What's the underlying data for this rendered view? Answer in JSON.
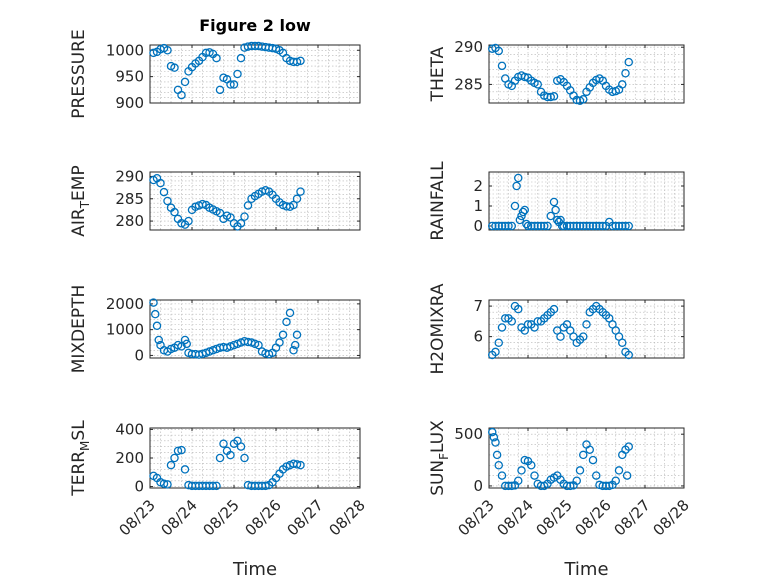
{
  "title": "Figure 2 low",
  "xlabel": "Time",
  "colors": {
    "marker": "#0072BD",
    "axes": "#262626",
    "grid": "#b5b5b5"
  },
  "chart_data": [
    {
      "type": "scatter",
      "title": "Figure 2 low",
      "ylabel": "PRESSURE",
      "ylim": [
        900,
        1010
      ],
      "yticks": [
        "900",
        "950",
        "1000"
      ],
      "xlim": [
        0,
        6
      ],
      "xticks": [
        "08/23",
        "08/24",
        "08/25",
        "08/26",
        "08/27",
        "08/28"
      ],
      "grid": true,
      "x": [
        0.1,
        0.2,
        0.3,
        0.4,
        0.5,
        0.6,
        0.7,
        0.8,
        0.9,
        1.0,
        1.1,
        1.2,
        1.3,
        1.4,
        1.5,
        1.6,
        1.7,
        1.8,
        1.9,
        2.0,
        2.1,
        2.2,
        2.3,
        2.4,
        2.5,
        2.6,
        2.7,
        2.8,
        2.9,
        3.0,
        3.1,
        3.2,
        3.3,
        3.4,
        3.5,
        3.6,
        3.7,
        3.8,
        3.9,
        4.0,
        4.1,
        4.2,
        4.3
      ],
      "y": [
        995,
        997,
        1002,
        1004,
        1000,
        970,
        967,
        925,
        915,
        940,
        960,
        968,
        975,
        980,
        987,
        995,
        996,
        993,
        985,
        925,
        948,
        945,
        935,
        935,
        955,
        985,
        1005,
        1007,
        1008,
        1008,
        1008,
        1007,
        1006,
        1005,
        1004,
        1003,
        1000,
        995,
        985,
        980,
        978,
        978,
        980
      ]
    },
    {
      "type": "scatter",
      "ylabel": "THETA",
      "ylim": [
        282.5,
        290.3
      ],
      "yticks": [
        "285",
        "290"
      ],
      "xlim": [
        0,
        6
      ],
      "xticks": [
        "08/23",
        "08/24",
        "08/25",
        "08/26",
        "08/27",
        "08/28"
      ],
      "grid": true,
      "x": [
        0.1,
        0.2,
        0.3,
        0.4,
        0.5,
        0.6,
        0.7,
        0.8,
        0.9,
        1.0,
        1.1,
        1.2,
        1.3,
        1.4,
        1.5,
        1.6,
        1.7,
        1.8,
        1.9,
        2.0,
        2.1,
        2.2,
        2.3,
        2.4,
        2.5,
        2.6,
        2.7,
        2.8,
        2.9,
        3.0,
        3.1,
        3.2,
        3.3,
        3.4,
        3.5,
        3.6,
        3.7,
        3.8,
        3.9,
        4.0,
        4.1,
        4.2,
        4.3
      ],
      "y": [
        289.8,
        289.9,
        289.5,
        287.5,
        285.8,
        285.0,
        284.8,
        285.5,
        286.0,
        286.2,
        286.0,
        285.9,
        285.5,
        285.2,
        285.0,
        284.0,
        283.5,
        283.3,
        283.3,
        283.4,
        285.5,
        285.7,
        285.3,
        284.8,
        284.2,
        283.5,
        282.9,
        282.8,
        283.0,
        284.0,
        284.6,
        285.2,
        285.6,
        285.8,
        285.5,
        284.8,
        284.3,
        284.0,
        284.1,
        284.3,
        285.0,
        286.5,
        288.0
      ]
    },
    {
      "type": "scatter",
      "ylabel": "AIR_TEMP",
      "ylabel_main": "AIR",
      "ylabel_sub": "T",
      "ylabel_rest": "EMP",
      "ylim": [
        278,
        291
      ],
      "yticks": [
        "280",
        "285",
        "290"
      ],
      "xlim": [
        0,
        6
      ],
      "xticks": [
        "08/23",
        "08/24",
        "08/25",
        "08/26",
        "08/27",
        "08/28"
      ],
      "grid": true,
      "x": [
        0.1,
        0.2,
        0.3,
        0.4,
        0.5,
        0.6,
        0.7,
        0.8,
        0.9,
        1.0,
        1.1,
        1.2,
        1.3,
        1.4,
        1.5,
        1.6,
        1.7,
        1.8,
        1.9,
        2.0,
        2.1,
        2.2,
        2.3,
        2.4,
        2.5,
        2.6,
        2.7,
        2.8,
        2.9,
        3.0,
        3.1,
        3.2,
        3.3,
        3.4,
        3.5,
        3.6,
        3.7,
        3.8,
        3.9,
        4.0,
        4.1,
        4.2,
        4.3
      ],
      "y": [
        289.2,
        289.6,
        288.5,
        286.5,
        284.5,
        283.0,
        282.0,
        280.5,
        279.5,
        279.2,
        280.0,
        282.5,
        283.2,
        283.5,
        283.8,
        283.6,
        283.0,
        282.6,
        282.2,
        281.8,
        280.5,
        281.2,
        280.8,
        279.5,
        278.8,
        279.5,
        281.0,
        283.5,
        285.0,
        285.6,
        286.1,
        286.6,
        286.9,
        286.6,
        285.9,
        285.0,
        284.2,
        283.6,
        283.3,
        283.2,
        283.6,
        285.0,
        286.6
      ]
    },
    {
      "type": "scatter",
      "ylabel": "RAINFALL",
      "ylim": [
        -0.2,
        2.7
      ],
      "yticks": [
        "0",
        "1",
        "2"
      ],
      "xlim": [
        0,
        6
      ],
      "xticks": [
        "08/23",
        "08/24",
        "08/25",
        "08/26",
        "08/27",
        "08/28"
      ],
      "grid": true,
      "x": [
        0.1,
        0.2,
        0.3,
        0.4,
        0.5,
        0.6,
        0.7,
        0.8,
        0.85,
        0.9,
        0.95,
        1.0,
        1.05,
        1.1,
        1.15,
        1.2,
        1.3,
        1.4,
        1.5,
        1.6,
        1.7,
        1.8,
        1.9,
        2.0,
        2.05,
        2.1,
        2.15,
        2.2,
        2.25,
        2.3,
        2.4,
        2.5,
        2.6,
        2.7,
        2.8,
        2.9,
        3.0,
        3.1,
        3.2,
        3.3,
        3.4,
        3.5,
        3.6,
        3.7,
        3.8,
        3.9,
        4.0,
        4.1,
        4.2,
        4.3
      ],
      "y": [
        0,
        0,
        0,
        0,
        0,
        0,
        0,
        1.0,
        2.0,
        2.4,
        0.3,
        0.5,
        0.7,
        0.8,
        0.1,
        0,
        0,
        0,
        0,
        0,
        0,
        0,
        0.5,
        1.2,
        0.8,
        0.3,
        0.2,
        0.3,
        0,
        0,
        0,
        0,
        0,
        0,
        0,
        0,
        0,
        0,
        0,
        0,
        0,
        0,
        0,
        0.2,
        0,
        0,
        0,
        0,
        0,
        0
      ]
    },
    {
      "type": "scatter",
      "ylabel": "MIXDEPTH",
      "ylim": [
        -100,
        2150
      ],
      "yticks": [
        "0",
        "1000",
        "2000"
      ],
      "xlim": [
        0,
        6
      ],
      "xticks": [
        "08/23",
        "08/24",
        "08/25",
        "08/26",
        "08/27",
        "08/28"
      ],
      "grid": true,
      "x": [
        0.1,
        0.15,
        0.2,
        0.25,
        0.3,
        0.4,
        0.5,
        0.6,
        0.7,
        0.8,
        0.9,
        1.0,
        1.05,
        1.1,
        1.2,
        1.3,
        1.4,
        1.5,
        1.6,
        1.7,
        1.8,
        1.9,
        2.0,
        2.1,
        2.2,
        2.3,
        2.4,
        2.5,
        2.6,
        2.7,
        2.8,
        2.9,
        3.0,
        3.1,
        3.2,
        3.3,
        3.4,
        3.5,
        3.6,
        3.7,
        3.8,
        3.9,
        4.0,
        4.1,
        4.15,
        4.2
      ],
      "y": [
        2050,
        1600,
        1150,
        600,
        400,
        200,
        150,
        250,
        300,
        400,
        350,
        600,
        450,
        100,
        50,
        50,
        30,
        60,
        100,
        150,
        200,
        250,
        300,
        320,
        300,
        350,
        400,
        450,
        500,
        550,
        520,
        500,
        450,
        400,
        150,
        80,
        50,
        100,
        300,
        500,
        800,
        1300,
        1650,
        200,
        400,
        800
      ]
    },
    {
      "type": "scatter",
      "ylabel": "H2OMIXRA",
      "ylim": [
        5.3,
        7.2
      ],
      "yticks": [
        "6",
        "7"
      ],
      "xlim": [
        0,
        6
      ],
      "xticks": [
        "08/23",
        "08/24",
        "08/25",
        "08/26",
        "08/27",
        "08/28"
      ],
      "grid": true,
      "x": [
        0.1,
        0.2,
        0.3,
        0.4,
        0.5,
        0.6,
        0.7,
        0.8,
        0.9,
        1.0,
        1.1,
        1.2,
        1.3,
        1.4,
        1.5,
        1.6,
        1.7,
        1.8,
        1.9,
        2.0,
        2.1,
        2.2,
        2.3,
        2.4,
        2.5,
        2.6,
        2.7,
        2.8,
        2.9,
        3.0,
        3.1,
        3.2,
        3.3,
        3.4,
        3.5,
        3.6,
        3.7,
        3.8,
        3.9,
        4.0,
        4.1,
        4.2,
        4.3
      ],
      "y": [
        5.4,
        5.5,
        5.8,
        6.3,
        6.6,
        6.6,
        6.5,
        7.0,
        6.9,
        6.3,
        6.2,
        6.4,
        6.4,
        6.3,
        6.5,
        6.5,
        6.6,
        6.7,
        6.8,
        6.9,
        6.2,
        6.0,
        6.3,
        6.4,
        6.2,
        6.0,
        5.8,
        5.9,
        6.0,
        6.4,
        6.8,
        6.9,
        7.0,
        6.9,
        6.8,
        6.7,
        6.6,
        6.4,
        6.2,
        6.0,
        5.8,
        5.5,
        5.4
      ]
    },
    {
      "type": "scatter",
      "ylabel": "TERR_MSL",
      "ylabel_main": "TERR",
      "ylabel_sub": "M",
      "ylabel_rest": "SL",
      "ylim": [
        -10,
        410
      ],
      "yticks": [
        "0",
        "200",
        "400"
      ],
      "xlim": [
        0,
        6
      ],
      "xticks": [
        "08/23",
        "08/24",
        "08/25",
        "08/26",
        "08/27",
        "08/28"
      ],
      "grid": true,
      "x": [
        0.1,
        0.2,
        0.3,
        0.4,
        0.5,
        0.6,
        0.7,
        0.8,
        0.9,
        1.0,
        1.1,
        1.2,
        1.3,
        1.4,
        1.5,
        1.6,
        1.7,
        1.8,
        1.9,
        2.0,
        2.1,
        2.2,
        2.3,
        2.4,
        2.5,
        2.6,
        2.7,
        2.8,
        2.9,
        3.0,
        3.1,
        3.2,
        3.3,
        3.4,
        3.5,
        3.6,
        3.7,
        3.8,
        3.9,
        4.0,
        4.1,
        4.2,
        4.3
      ],
      "y": [
        75,
        60,
        30,
        20,
        15,
        150,
        200,
        250,
        255,
        120,
        10,
        5,
        5,
        5,
        5,
        5,
        5,
        5,
        5,
        200,
        300,
        250,
        220,
        300,
        320,
        280,
        200,
        10,
        5,
        5,
        5,
        5,
        5,
        10,
        30,
        60,
        90,
        120,
        140,
        150,
        160,
        155,
        150
      ]
    },
    {
      "type": "scatter",
      "ylabel": "SUN_FLUX",
      "ylabel_main": "SUN",
      "ylabel_sub": "F",
      "ylabel_rest": "LUX",
      "ylim": [
        -20,
        560
      ],
      "yticks": [
        "0",
        "500"
      ],
      "xlim": [
        0,
        6
      ],
      "xticks": [
        "08/23",
        "08/24",
        "08/25",
        "08/26",
        "08/27",
        "08/28"
      ],
      "grid": true,
      "x": [
        0.1,
        0.15,
        0.2,
        0.25,
        0.3,
        0.4,
        0.5,
        0.6,
        0.7,
        0.8,
        0.9,
        1.0,
        1.1,
        1.2,
        1.3,
        1.4,
        1.5,
        1.6,
        1.7,
        1.8,
        1.9,
        2.0,
        2.1,
        2.2,
        2.3,
        2.4,
        2.5,
        2.6,
        2.7,
        2.8,
        2.9,
        3.0,
        3.1,
        3.2,
        3.3,
        3.4,
        3.5,
        3.6,
        3.7,
        3.8,
        3.9,
        4.0,
        4.1,
        4.2,
        4.25,
        4.3
      ],
      "y": [
        520,
        470,
        420,
        300,
        200,
        100,
        0,
        0,
        0,
        5,
        50,
        150,
        250,
        240,
        200,
        100,
        20,
        0,
        0,
        20,
        60,
        80,
        100,
        60,
        20,
        0,
        0,
        5,
        50,
        150,
        300,
        400,
        350,
        250,
        100,
        10,
        0,
        0,
        0,
        10,
        50,
        150,
        300,
        350,
        100,
        380
      ]
    }
  ]
}
